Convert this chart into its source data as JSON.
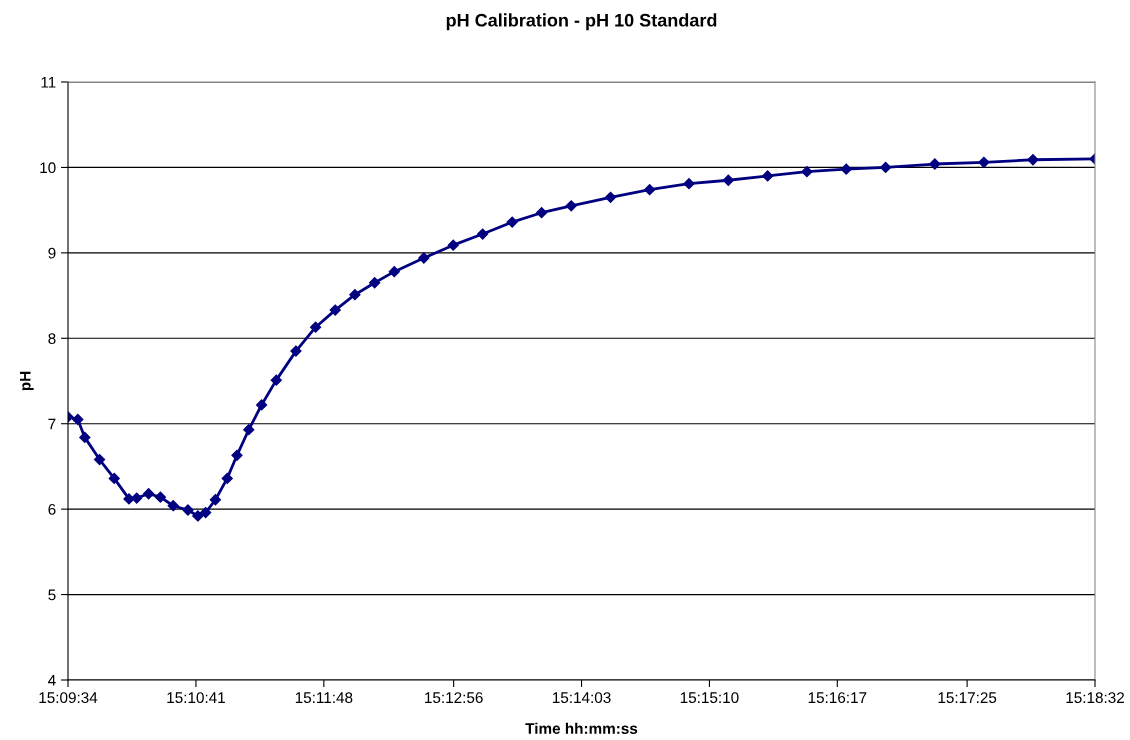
{
  "chart_data": {
    "type": "line",
    "title": "pH Calibration - pH 10 Standard",
    "xlabel": "Time hh:mm:ss",
    "ylabel": "pH",
    "x": [
      15.15944,
      15.16087,
      15.16189,
      15.16403,
      15.16617,
      15.16831,
      15.16944,
      15.17117,
      15.17289,
      15.17475,
      15.17689,
      15.17833,
      15.17947,
      15.18089,
      15.18261,
      15.18403,
      15.18575,
      15.18761,
      15.18975,
      15.19261,
      15.19547,
      15.19833,
      15.20119,
      15.20406,
      15.20692,
      15.21122,
      15.2155,
      15.21978,
      15.22408,
      15.22836,
      15.23267,
      15.23839,
      15.24408,
      15.24981,
      15.25553,
      15.26125,
      15.26697,
      15.27269,
      15.27842,
      15.28558,
      15.29272,
      15.29986,
      15.30889
    ],
    "series": [
      {
        "color": "#000080",
        "values": [
          7.08,
          7.05,
          6.84,
          6.58,
          6.36,
          6.12,
          6.13,
          6.18,
          6.14,
          6.04,
          5.99,
          5.92,
          5.96,
          6.11,
          6.36,
          6.63,
          6.93,
          7.22,
          7.51,
          7.85,
          8.13,
          8.33,
          8.51,
          8.65,
          8.78,
          8.94,
          9.09,
          9.22,
          9.36,
          9.47,
          9.55,
          9.65,
          9.74,
          9.81,
          9.85,
          9.9,
          9.95,
          9.98,
          10.0,
          10.04,
          10.06,
          10.09,
          10.1
        ]
      }
    ],
    "xlim": [
      15.15944,
      15.30889
    ],
    "xticks": [
      {
        "value": 15.15944,
        "label": "15:09:34"
      },
      {
        "value": 15.17806,
        "label": "15:10:41"
      },
      {
        "value": 15.19667,
        "label": "15:11:48"
      },
      {
        "value": 15.21556,
        "label": "15:12:56"
      },
      {
        "value": 15.23417,
        "label": "15:14:03"
      },
      {
        "value": 15.25278,
        "label": "15:15:10"
      },
      {
        "value": 15.27139,
        "label": "15:16:17"
      },
      {
        "value": 15.29028,
        "label": "15:17:25"
      },
      {
        "value": 15.30889,
        "label": "15:18:32"
      }
    ],
    "ylim": [
      4,
      11
    ],
    "yticks": [
      4,
      5,
      6,
      7,
      8,
      9,
      10,
      11
    ],
    "grid": "y",
    "marker": "diamond",
    "line_style": "solid",
    "legend": false
  }
}
